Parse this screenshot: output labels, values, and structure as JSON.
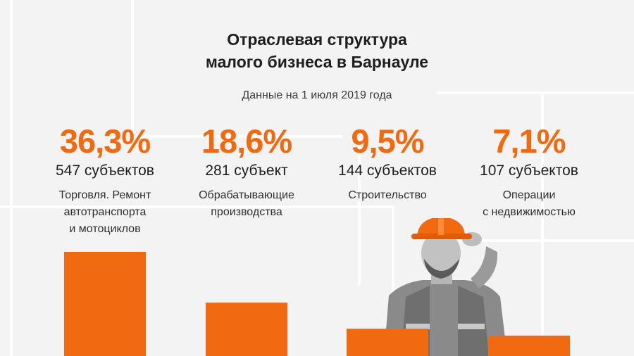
{
  "title_line1": "Отраслевая структура",
  "title_line2": "малого бизнеса в Барнауле",
  "subtitle": "Данные на 1 июля 2019 года",
  "colors": {
    "accent": "#f26a10",
    "text": "#1e1e1e",
    "background": "#f3f3f3"
  },
  "chart_data": {
    "type": "bar",
    "title": "Отраслевая структура малого бизнеса в Барнауле",
    "subtitle": "Данные на 1 июля 2019 года",
    "categories": [
      "Торговля. Ремонт автотранспорта и мотоциклов",
      "Обрабатывающие производства",
      "Строительство",
      "Операции с недвижимостью"
    ],
    "values": [
      36.3,
      18.6,
      9.5,
      7.1
    ],
    "units": "%",
    "ylim": [
      0,
      40
    ],
    "grid": false,
    "legend": "none",
    "items": [
      {
        "pct": "36,3%",
        "count": "547 субъектов",
        "label": "Торговля. Ремонт\nавтотранспорта\nи мотоциклов"
      },
      {
        "pct": "18,6%",
        "count": "281 субъект",
        "label": "Обрабатывающие\nпроизводства"
      },
      {
        "pct": "9,5%",
        "count": "144 субъектов",
        "label": "Строительство"
      },
      {
        "pct": "7,1%",
        "count": "107 субъектов",
        "label": "Операции\nс недвижимостью"
      }
    ]
  }
}
